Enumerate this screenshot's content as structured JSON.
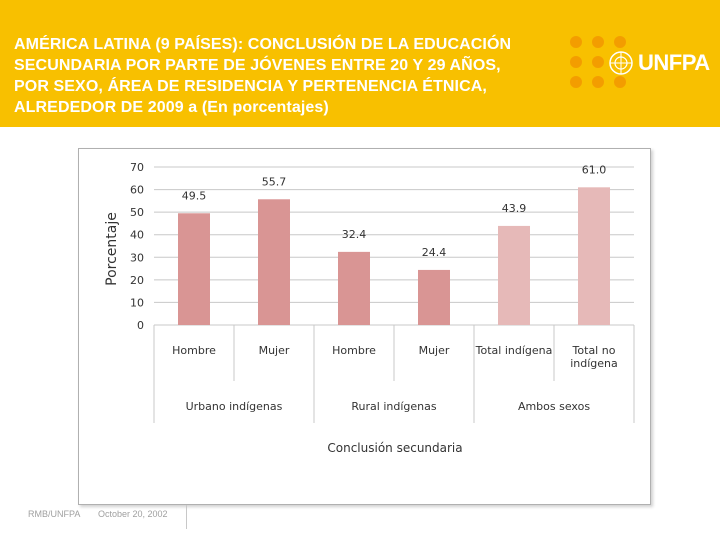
{
  "header": {
    "title": "AMÉRICA LATINA (9 PAÍSES): CONCLUSIÓN DE LA EDUCACIÓN\nSECUNDARIA POR PARTE DE JÓVENES ENTRE 20 Y 29 AÑOS,\nPOR SEXO, ÁREA DE RESIDENCIA Y PERTENENCIA  ÉTNICA,\nALREDEDOR DE 2009 a  (En porcentajes)",
    "logo_text": "UNFPA",
    "background_color": "#f8c000"
  },
  "footer": {
    "org": "RMB/UNFPA",
    "date": "October 20, 2002"
  },
  "chart_data": {
    "type": "bar",
    "title": "",
    "xlabel": "Conclusión secundaria",
    "ylabel": "Porcentaje",
    "ylim": [
      0,
      70
    ],
    "yticks": [
      0,
      10,
      20,
      30,
      40,
      50,
      60,
      70
    ],
    "grid": true,
    "categories": [
      "Hombre",
      "Mujer",
      "Hombre",
      "Mujer",
      "Total indígena",
      "Total no indígena"
    ],
    "values": [
      49.5,
      55.7,
      32.4,
      24.4,
      43.9,
      61.0
    ],
    "value_labels": [
      "49.5",
      "55.7",
      "32.4",
      "24.4",
      "43.9",
      "61.0"
    ],
    "colors": [
      "#d99594",
      "#d99594",
      "#d99594",
      "#d99594",
      "#e6b9b8",
      "#e6b9b8"
    ],
    "groups": [
      {
        "label": "Urbano indígenas",
        "count": 2
      },
      {
        "label": "Rural indígenas",
        "count": 2
      },
      {
        "label": "Ambos sexos",
        "count": 2
      }
    ]
  }
}
